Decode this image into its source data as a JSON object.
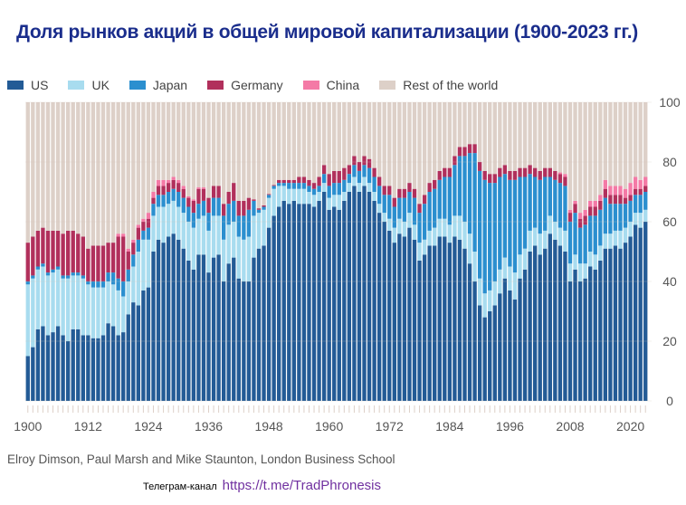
{
  "title": "Доля рынков акций в общей мировой капитализации (1900-2023 гг.)",
  "source": "Elroy Dimson, Paul Marsh and Mike Staunton, London Business School",
  "telegram": {
    "label": "Телеграм-канал",
    "link": "https://t.me/TradPhronesis"
  },
  "chart_data": {
    "type": "bar",
    "stacked": true,
    "x_start": 1900,
    "x_end": 2023,
    "ylim": [
      0,
      100
    ],
    "yticks": [
      "0",
      "20",
      "40",
      "60",
      "80",
      "100"
    ],
    "xticks": [
      "1900",
      "1912",
      "1924",
      "1936",
      "1948",
      "1960",
      "1972",
      "1984",
      "1996",
      "2008",
      "2020"
    ],
    "legend_position": "top",
    "series": [
      {
        "name": "US",
        "color": "#235b96",
        "values": [
          15,
          18,
          24,
          25,
          22,
          23,
          25,
          22,
          20,
          24,
          24,
          22,
          22,
          21,
          21,
          22,
          26,
          25,
          22,
          23,
          29,
          33,
          32,
          37,
          38,
          50,
          54,
          53,
          55,
          56,
          54,
          51,
          47,
          44,
          49,
          49,
          43,
          48,
          49,
          40,
          46,
          48,
          41,
          40,
          40,
          48,
          51,
          52,
          58,
          62,
          65,
          67,
          66,
          67,
          66,
          66,
          66,
          65,
          67,
          70,
          64,
          65,
          64,
          67,
          70,
          72,
          70,
          72,
          70,
          67,
          63,
          60,
          57,
          53,
          56,
          55,
          58,
          54,
          47,
          49,
          52,
          52,
          55,
          55,
          53,
          55,
          54,
          51,
          46,
          40,
          32,
          28,
          30,
          32,
          36,
          41,
          37,
          34,
          41,
          44,
          50,
          52,
          49,
          51,
          56,
          54,
          52,
          50,
          40,
          44,
          40,
          41,
          45,
          44,
          47,
          51,
          51,
          52,
          51,
          53,
          55,
          59,
          58,
          60
        ]
      },
      {
        "name": "UK",
        "color": "#a8dcef",
        "values": [
          24,
          23,
          20,
          20,
          20,
          20,
          19,
          19,
          21,
          18,
          18,
          19,
          17,
          17,
          17,
          16,
          14,
          14,
          15,
          12,
          11,
          12,
          18,
          17,
          16,
          12,
          11,
          12,
          11,
          11,
          11,
          12,
          13,
          14,
          12,
          13,
          14,
          14,
          13,
          14,
          13,
          12,
          14,
          14,
          15,
          14,
          12,
          12,
          10,
          9,
          7,
          5,
          5,
          4,
          5,
          5,
          4,
          4,
          3,
          3,
          4,
          4,
          5,
          3,
          3,
          3,
          3,
          3,
          3,
          3,
          3,
          3,
          4,
          5,
          5,
          5,
          5,
          5,
          6,
          5,
          5,
          6,
          6,
          6,
          6,
          7,
          8,
          9,
          10,
          10,
          9,
          8,
          7,
          8,
          8,
          7,
          8,
          9,
          8,
          7,
          7,
          6,
          7,
          6,
          6,
          6,
          6,
          7,
          6,
          5,
          6,
          5,
          5,
          5,
          5,
          5,
          5,
          5,
          6,
          5,
          5,
          4,
          5,
          4
        ]
      },
      {
        "name": "Japan",
        "color": "#2b8fcf",
        "values": [
          1,
          1,
          1,
          1,
          1,
          1,
          1,
          1,
          1,
          1,
          1,
          1,
          1,
          2,
          2,
          2,
          3,
          4,
          4,
          5,
          4,
          4,
          4,
          3,
          4,
          4,
          4,
          4,
          4,
          4,
          5,
          5,
          5,
          5,
          5,
          5,
          6,
          6,
          6,
          8,
          7,
          7,
          7,
          8,
          9,
          5,
          1,
          1,
          1,
          1,
          1,
          1,
          2,
          2,
          2,
          2,
          2,
          2,
          2,
          3,
          4,
          4,
          4,
          4,
          3,
          4,
          4,
          4,
          5,
          5,
          6,
          6,
          8,
          7,
          7,
          8,
          7,
          9,
          10,
          12,
          13,
          13,
          13,
          14,
          16,
          17,
          20,
          22,
          27,
          33,
          36,
          38,
          36,
          33,
          31,
          28,
          29,
          31,
          26,
          24,
          19,
          17,
          18,
          18,
          13,
          14,
          15,
          15,
          14,
          14,
          12,
          13,
          12,
          13,
          12,
          12,
          10,
          9,
          9,
          8,
          7,
          6,
          6,
          6
        ]
      },
      {
        "name": "Germany",
        "color": "#b1305c",
        "values": [
          13,
          13,
          12,
          12,
          14,
          13,
          12,
          14,
          15,
          14,
          13,
          13,
          11,
          12,
          12,
          12,
          10,
          10,
          14,
          15,
          6,
          4,
          4,
          3,
          3,
          2,
          3,
          3,
          3,
          3,
          3,
          3,
          3,
          4,
          5,
          4,
          5,
          4,
          4,
          4,
          4,
          6,
          5,
          5,
          4,
          0.5,
          0.5,
          0.5,
          0.3,
          0.3,
          1,
          1,
          1,
          1,
          2,
          2,
          2,
          2,
          3,
          3,
          4,
          4,
          4,
          4,
          3,
          3,
          3,
          3,
          3,
          3,
          3,
          3,
          3,
          3,
          3,
          3,
          3,
          3,
          3,
          3,
          3,
          3,
          3,
          3,
          3,
          3,
          3,
          3,
          3,
          3,
          3,
          3,
          3,
          3,
          3,
          3,
          3,
          3,
          3,
          3,
          3,
          3,
          3,
          3,
          3,
          3,
          3,
          3,
          3,
          3,
          3,
          3,
          3,
          3,
          3,
          3,
          3,
          3,
          3,
          2,
          2,
          2,
          2,
          2
        ]
      },
      {
        "name": "China",
        "color": "#f47aa6",
        "values": [
          0,
          0,
          0,
          0,
          0,
          0,
          0,
          0,
          0,
          0,
          0,
          0,
          0,
          0,
          0,
          0,
          0,
          0,
          1,
          1,
          1,
          1,
          1,
          1,
          2,
          2,
          2,
          2,
          1,
          1,
          1,
          1,
          0.5,
          0.5,
          0.5,
          0.5,
          0,
          0,
          0,
          0,
          0,
          0,
          0,
          0,
          0,
          0,
          0,
          0,
          0,
          0,
          0,
          0,
          0,
          0,
          0,
          0,
          0,
          0,
          0,
          0,
          0,
          0,
          0,
          0,
          0,
          0,
          0,
          0,
          0,
          0,
          0,
          0,
          0,
          0,
          0,
          0,
          0,
          0,
          0,
          0,
          0,
          0,
          0,
          0,
          0,
          0,
          0,
          0,
          0,
          0,
          0,
          0,
          0,
          0,
          0,
          0,
          0,
          0,
          0,
          0,
          0,
          0,
          0,
          0,
          0,
          0,
          0.5,
          1,
          1,
          1,
          2,
          2,
          2,
          2,
          2,
          3,
          3,
          3,
          3,
          3,
          4,
          4,
          3,
          3
        ]
      },
      {
        "name": "Rest of the world",
        "color": "#ddd0c8",
        "remainder_to": 100
      }
    ]
  }
}
